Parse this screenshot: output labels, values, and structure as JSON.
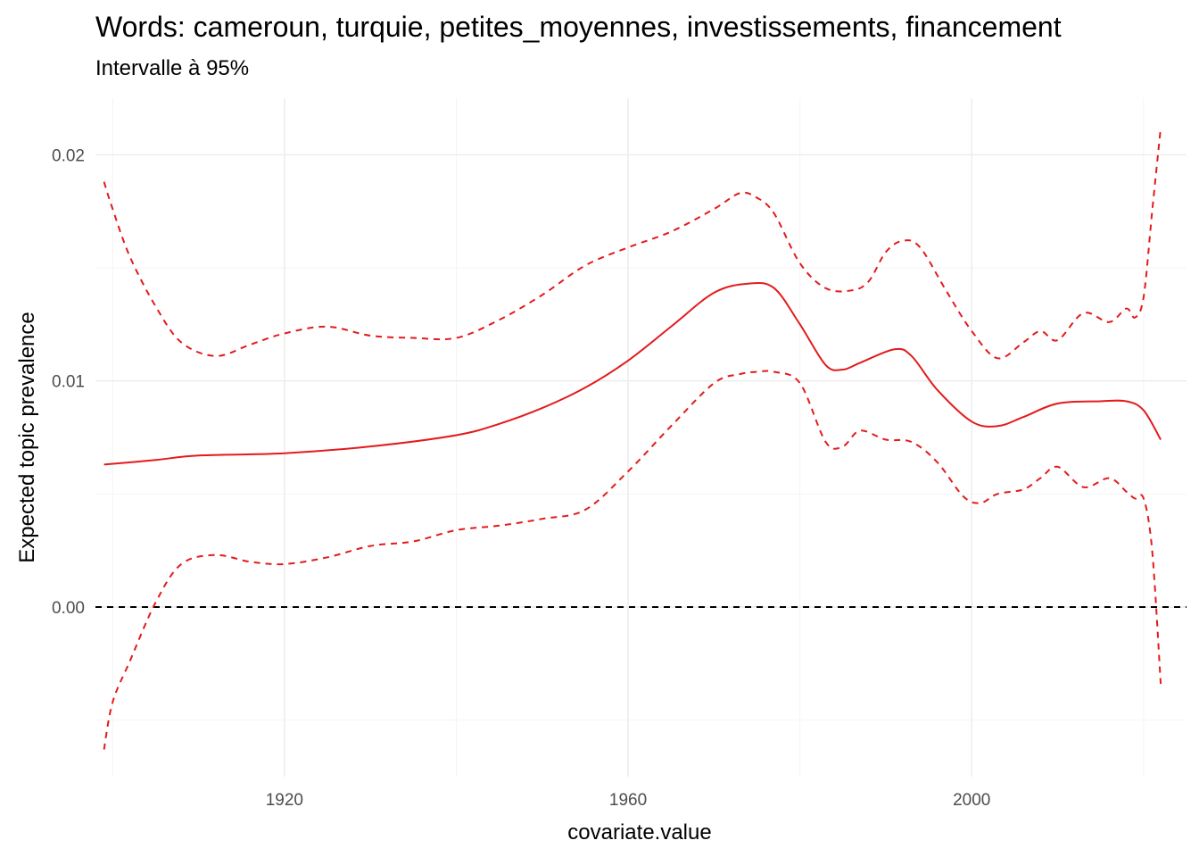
{
  "chart_data": {
    "type": "line",
    "title": "Words: cameroun, turquie, petites_moyennes, investissements, financement",
    "subtitle": "Intervalle à 95%",
    "xlabel": "covariate.value",
    "ylabel": "Expected topic prevalence",
    "xlim": [
      1898,
      2025
    ],
    "ylim": [
      -0.0075,
      0.0225
    ],
    "x_ticks": [
      1920,
      1960,
      2000
    ],
    "x_tick_labels": [
      "1920",
      "1960",
      "2000"
    ],
    "y_ticks": [
      0.0,
      0.01,
      0.02
    ],
    "y_tick_labels": [
      "0.00",
      "0.01",
      "0.02"
    ],
    "grid": true,
    "reference_line": {
      "y": 0.0,
      "style": "dashed",
      "color": "#000000"
    },
    "series_color": "#e31a1c",
    "series": [
      {
        "role": "estimate",
        "style": "solid",
        "x": [
          1899,
          1905,
          1910,
          1920,
          1930,
          1940,
          1945,
          1950,
          1955,
          1960,
          1965,
          1970,
          1974,
          1977,
          1980,
          1983,
          1985,
          1987,
          1991,
          1993,
          1996,
          2000,
          2003,
          2006,
          2010,
          2015,
          2018,
          2020,
          2022
        ],
        "y": [
          0.0063,
          0.0065,
          0.0067,
          0.0068,
          0.0071,
          0.0076,
          0.0081,
          0.0088,
          0.0097,
          0.0109,
          0.0124,
          0.0139,
          0.0143,
          0.0141,
          0.0125,
          0.0107,
          0.0105,
          0.0108,
          0.0114,
          0.0111,
          0.0096,
          0.0082,
          0.008,
          0.0084,
          0.009,
          0.0091,
          0.0091,
          0.0087,
          0.0074
        ]
      },
      {
        "role": "upper",
        "style": "dashed",
        "x": [
          1899,
          1900,
          1902,
          1905,
          1908,
          1912,
          1916,
          1920,
          1925,
          1930,
          1935,
          1940,
          1945,
          1950,
          1955,
          1960,
          1965,
          1970,
          1973,
          1975,
          1977,
          1980,
          1983,
          1986,
          1988,
          1990,
          1992,
          1994,
          1997,
          2000,
          2003,
          2006,
          2008,
          2010,
          2013,
          2016,
          2018,
          2019,
          2020,
          2021,
          2022
        ],
        "y": [
          0.0188,
          0.0176,
          0.0155,
          0.0133,
          0.0117,
          0.0111,
          0.0116,
          0.0121,
          0.0124,
          0.012,
          0.0119,
          0.0119,
          0.0127,
          0.0138,
          0.0151,
          0.0159,
          0.0166,
          0.0176,
          0.0183,
          0.0181,
          0.0174,
          0.0152,
          0.0141,
          0.014,
          0.0144,
          0.0157,
          0.0162,
          0.0159,
          0.014,
          0.0122,
          0.011,
          0.0117,
          0.0122,
          0.0118,
          0.013,
          0.0126,
          0.0132,
          0.0128,
          0.0137,
          0.0175,
          0.0212
        ]
      },
      {
        "role": "lower",
        "style": "dashed",
        "x": [
          1899,
          1900,
          1902,
          1905,
          1908,
          1912,
          1916,
          1920,
          1925,
          1930,
          1935,
          1940,
          1945,
          1950,
          1955,
          1960,
          1965,
          1970,
          1973,
          1975,
          1977,
          1980,
          1983,
          1985,
          1987,
          1990,
          1993,
          1996,
          1999,
          2001,
          2003,
          2006,
          2008,
          2010,
          2013,
          2016,
          2018,
          2019,
          2020,
          2021,
          2022
        ],
        "y": [
          -0.0063,
          -0.0042,
          -0.0024,
          0.0002,
          0.0019,
          0.0023,
          0.002,
          0.0019,
          0.0022,
          0.0027,
          0.0029,
          0.0034,
          0.0036,
          0.0039,
          0.0043,
          0.006,
          0.008,
          0.0099,
          0.0103,
          0.0104,
          0.0104,
          0.0099,
          0.0073,
          0.0071,
          0.0078,
          0.0074,
          0.0073,
          0.0064,
          0.0049,
          0.0046,
          0.005,
          0.0052,
          0.0057,
          0.0062,
          0.0053,
          0.0057,
          0.0051,
          0.0048,
          0.0048,
          0.0025,
          -0.0034
        ]
      }
    ]
  }
}
